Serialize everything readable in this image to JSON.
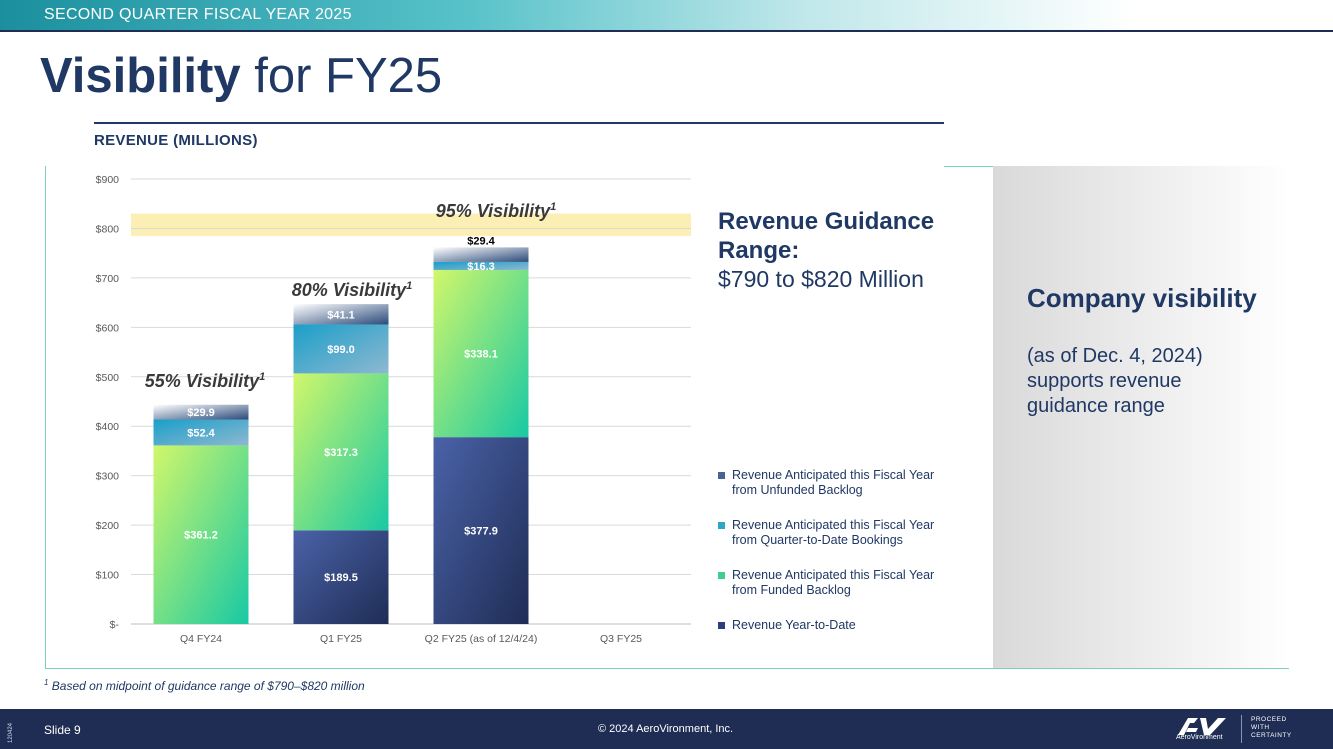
{
  "header": {
    "section": "SECOND QUARTER FISCAL YEAR 2025",
    "title_bold": "Visibility",
    "title_rest": " for FY25"
  },
  "chart_data": {
    "type": "bar",
    "stacked": true,
    "title": "REVENUE (MILLIONS)",
    "categories": [
      "Q4 FY24",
      "Q1 FY25",
      "Q2 FY25 (as of 12/4/24)",
      "Q3 FY25"
    ],
    "series": [
      {
        "name": "Revenue Year-to-Date",
        "color": "#2b3f7a",
        "values": [
          null,
          189.5,
          377.9,
          null
        ],
        "labels": [
          "",
          "$189.5",
          "$377.9",
          ""
        ]
      },
      {
        "name": "Revenue Anticipated this Fiscal Year from Funded Backlog",
        "color": "#3ecf8e",
        "values": [
          361.2,
          317.3,
          338.1,
          null
        ],
        "labels": [
          "$361.2",
          "$317.3",
          "$338.1",
          ""
        ]
      },
      {
        "name": "Revenue Anticipated this Fiscal Year from Quarter-to-Date Bookings",
        "color": "#2aa8c8",
        "values": [
          52.4,
          99.0,
          16.3,
          null
        ],
        "labels": [
          "$52.4",
          "$99.0",
          "$16.3",
          ""
        ]
      },
      {
        "name": "Revenue Anticipated this Fiscal Year from Unfunded Backlog",
        "color": "#4a6491",
        "values": [
          29.9,
          41.1,
          29.4,
          null
        ],
        "labels": [
          "$29.9",
          "$41.1",
          "$29.4",
          ""
        ]
      }
    ],
    "ylim": [
      0,
      900
    ],
    "yticks": [
      0,
      100,
      200,
      300,
      400,
      500,
      600,
      700,
      800,
      900
    ],
    "ytick_labels": [
      "$-",
      "$100",
      "$200",
      "$300",
      "$400",
      "$500",
      "$600",
      "$700",
      "$800",
      "$900"
    ],
    "guidance_band": [
      790,
      820
    ],
    "visibility_labels": [
      "55% Visibility",
      "80% Visibility",
      "95% Visibility",
      ""
    ],
    "visibility_sup": "1",
    "legend_order": [
      3,
      2,
      1,
      0
    ],
    "legend_placement": "right",
    "grid": true
  },
  "guidance": {
    "heading": "Revenue Guidance Range:",
    "range": "$790 to $820 Million"
  },
  "side_panel": {
    "heading": "Company visibility",
    "subtext": "(as of Dec. 4, 2024) supports revenue guidance range"
  },
  "footnote": {
    "marker": "1",
    "text": " Based on midpoint of guidance range of $790–$820 million"
  },
  "footer": {
    "slide": "Slide 9",
    "copyright": "© 2024 AeroVironment, Inc.",
    "doc_id": "120424",
    "logo_name": "AeroVironment",
    "tagline": [
      "PROCEED",
      "WITH",
      "CERTAINTY"
    ]
  }
}
